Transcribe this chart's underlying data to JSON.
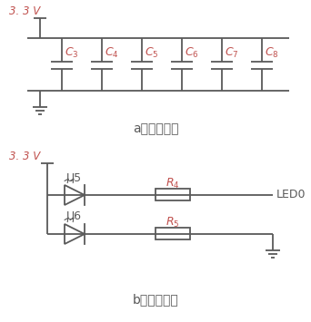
{
  "bg_color": "#ffffff",
  "line_color": "#595959",
  "orange_color": "#c0504d",
  "black_color": "#595959",
  "title_a": "a）滤波电路",
  "title_b": "b）指示电路",
  "voltage_label": "3. 3 V",
  "led_label": "LED0",
  "u5_label": "U5",
  "u6_label": "U6",
  "figsize": [
    3.42,
    3.55
  ],
  "dpi": 100
}
